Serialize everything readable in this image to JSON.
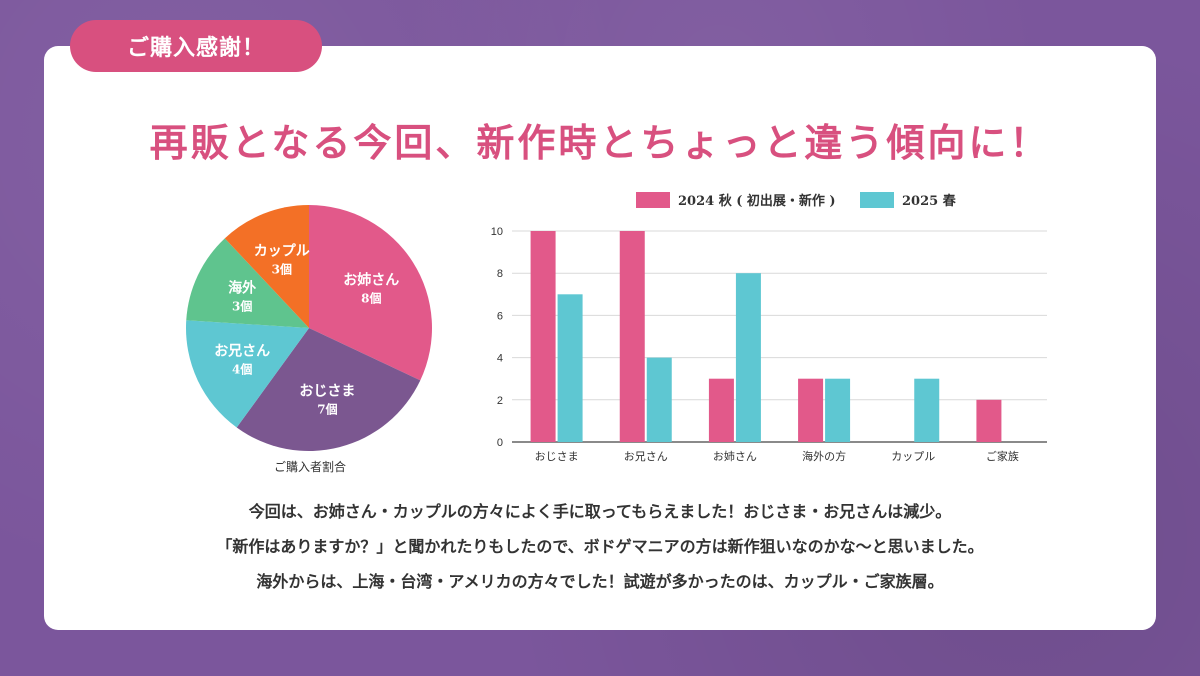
{
  "badge": {
    "label": "ご購入感謝！"
  },
  "headline": "再販となる今回、新作時とちょっと違う傾向に！",
  "colors": {
    "background": "#7b569c",
    "pink": "#e2598a",
    "cyan": "#5ec7d2",
    "purple": "#7b5790",
    "green": "#5fc48e",
    "orange": "#f37026",
    "badge": "#d8507f"
  },
  "chart_data": [
    {
      "type": "pie",
      "title": "ご購入者割合",
      "slices": [
        {
          "label": "お姉さん",
          "value": 8,
          "value_label": "8個",
          "color": "#e2598a"
        },
        {
          "label": "おじさま",
          "value": 7,
          "value_label": "7個",
          "color": "#7b5790"
        },
        {
          "label": "お兄さん",
          "value": 4,
          "value_label": "4個",
          "color": "#5ec7d2"
        },
        {
          "label": "海外",
          "value": 3,
          "value_label": "3個",
          "color": "#5fc48e"
        },
        {
          "label": "カップル",
          "value": 3,
          "value_label": "3個",
          "color": "#f37026"
        }
      ]
    },
    {
      "type": "bar",
      "categories": [
        "おじさま",
        "お兄さん",
        "お姉さん",
        "海外の方",
        "カップル",
        "ご家族"
      ],
      "series": [
        {
          "name": "2024 秋 ( 初出展・新作 )",
          "values": [
            10,
            10,
            3,
            3,
            0,
            2
          ],
          "color": "#e2598a"
        },
        {
          "name": "2025 春",
          "values": [
            7,
            4,
            8,
            3,
            3,
            0
          ],
          "color": "#5ec7d2"
        }
      ],
      "ylim": [
        0,
        10
      ],
      "yticks": [
        0,
        2,
        4,
        6,
        8,
        10
      ],
      "grid": true,
      "legend": "top"
    }
  ],
  "body": {
    "line1": "今回は、お姉さん・カップルの方々によく手に取ってもらえました！おじさま・お兄さんは減少。",
    "line2": "「新作はありますか？」と聞かれたりもしたので、ボドゲマニアの方は新作狙いなのかな〜と思いました。",
    "line3": "海外からは、上海・台湾・アメリカの方々でした！試遊が多かったのは、カップル・ご家族層。"
  }
}
